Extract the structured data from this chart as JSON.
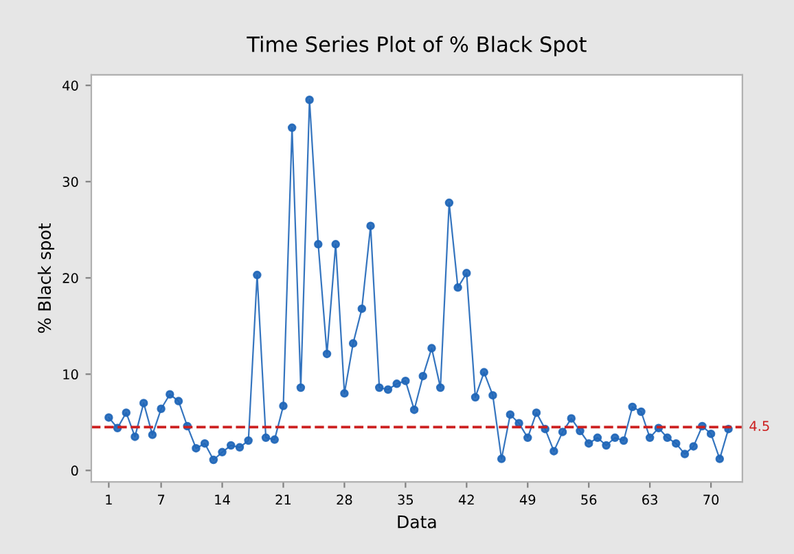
{
  "chart_data": {
    "type": "line",
    "title": "Time Series Plot of % Black Spot",
    "xlabel": "Data",
    "ylabel": "% Black spot",
    "x": [
      1,
      2,
      3,
      4,
      5,
      6,
      7,
      8,
      9,
      10,
      11,
      12,
      13,
      14,
      15,
      16,
      17,
      18,
      19,
      20,
      21,
      22,
      23,
      24,
      25,
      26,
      27,
      28,
      29,
      30,
      31,
      32,
      33,
      34,
      35,
      36,
      37,
      38,
      39,
      40,
      41,
      42,
      43,
      44,
      45,
      46,
      47,
      48,
      49,
      50,
      51,
      52,
      53,
      54,
      55,
      56,
      57,
      58,
      59,
      60,
      61,
      62,
      63,
      64,
      65,
      66,
      67,
      68,
      69,
      70,
      71,
      72
    ],
    "series": [
      {
        "color": "#1f66b8",
        "values": [
          5.5,
          4.4,
          6.0,
          3.5,
          7.0,
          3.7,
          6.4,
          7.9,
          7.2,
          4.6,
          2.3,
          2.8,
          1.1,
          1.9,
          2.6,
          2.4,
          3.1,
          20.3,
          3.4,
          3.2,
          6.7,
          35.6,
          8.6,
          38.5,
          23.5,
          12.1,
          23.5,
          8.0,
          13.2,
          16.8,
          25.4,
          8.6,
          8.4,
          9.0,
          9.3,
          6.3,
          9.8,
          12.7,
          8.6,
          27.8,
          19.0,
          20.5,
          7.6,
          10.2,
          7.8,
          1.2,
          5.8,
          4.9,
          3.4,
          6.0,
          4.3,
          2.0,
          4.0,
          5.4,
          4.1,
          2.8,
          3.4,
          2.6,
          3.4,
          3.1,
          6.6,
          6.1,
          3.4,
          4.4,
          3.4,
          2.8,
          1.7,
          2.5,
          4.6,
          3.8,
          1.2,
          4.3
        ]
      }
    ],
    "marker": "circle",
    "line_style": "solid",
    "xlim": [
      -1.0,
      73.6
    ],
    "xticks": [
      1,
      7,
      14,
      21,
      28,
      35,
      42,
      49,
      56,
      63,
      70
    ],
    "ylim": [
      -1.2,
      41.1
    ],
    "yticks": [
      0,
      10,
      20,
      30,
      40
    ],
    "ref_lines": [
      {
        "axis": "y",
        "value": 4.5,
        "label": "4.5",
        "color": "#cc1f1f",
        "line_style": "dashed"
      }
    ],
    "grid": false,
    "legend": false
  }
}
